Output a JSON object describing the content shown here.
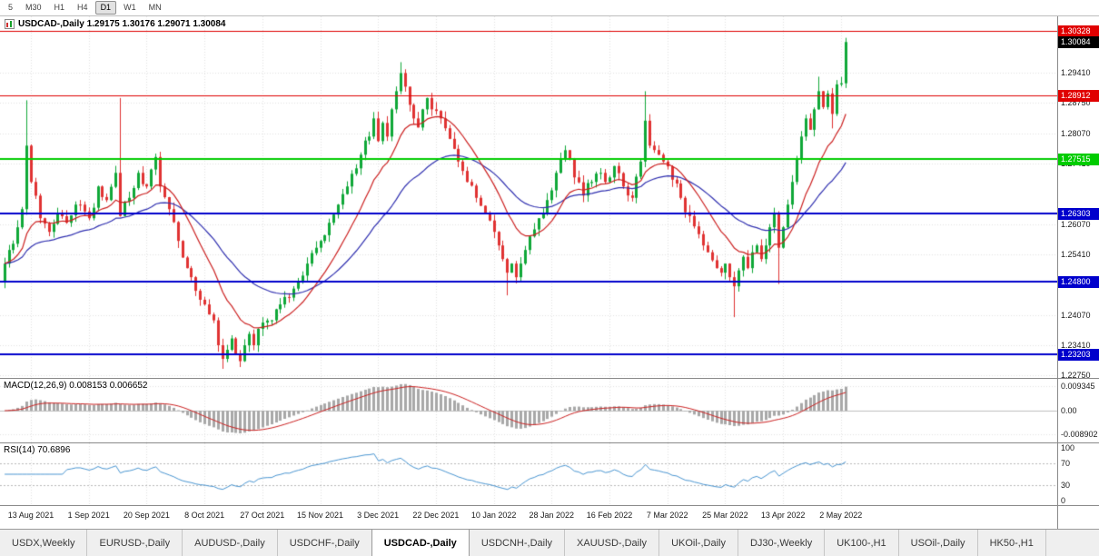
{
  "toolbar": {
    "timeframes": [
      "5",
      "M30",
      "H1",
      "H4",
      "D1",
      "W1",
      "MN"
    ],
    "active_timeframe": "D1"
  },
  "chart": {
    "symbol": "USDCAD-",
    "period": "Daily",
    "title_text": "USDCAD-,Daily 1.29175 1.30176 1.29071 1.30084",
    "price_axis_labels": [
      "1.29410",
      "1.28750",
      "1.28070",
      "1.27410",
      "1.26070",
      "1.25410",
      "1.24070",
      "1.23410",
      "1.22750"
    ],
    "current_price_label": "1.30084",
    "levels": [
      {
        "value": 1.30328,
        "label": "1.30328",
        "color": "#e00000",
        "width": 1
      },
      {
        "value": 1.28912,
        "label": "1.28912",
        "color": "#e00000",
        "width": 1
      },
      {
        "value": 1.27515,
        "label": "1.27515",
        "color": "#00cc00",
        "width": 2
      },
      {
        "value": 1.26303,
        "label": "1.26303",
        "color": "#0000cc",
        "width": 2
      },
      {
        "value": 1.248,
        "label": "1.24800",
        "color": "#0000cc",
        "width": 2
      },
      {
        "value": 1.23203,
        "label": "1.23203",
        "color": "#0000cc",
        "width": 2
      }
    ],
    "colors": {
      "bull": "#0fa838",
      "bear": "#e03232",
      "ma_fast": "#cc2020",
      "ma_slow": "#3030b0",
      "grid": "#e2e2e2",
      "current_price_bg": "#000000"
    },
    "date_labels": [
      "13 Aug 2021",
      "1 Sep 2021",
      "20 Sep 2021",
      "8 Oct 2021",
      "27 Oct 2021",
      "15 Nov 2021",
      "3 Dec 2021",
      "22 Dec 2021",
      "10 Jan 2022",
      "28 Jan 2022",
      "16 Feb 2022",
      "7 Mar 2022",
      "25 Mar 2022",
      "13 Apr 2022",
      "2 May 2022"
    ]
  },
  "macd": {
    "label": "MACD(12,26,9) 0.008153 0.006652",
    "value": 0.008153,
    "signal": 0.006652,
    "axis_labels": [
      {
        "text": "0.009345",
        "value": 0.009345
      },
      {
        "text": "0.00",
        "value": 0
      },
      {
        "text": "-0.008902",
        "value": -0.008902
      }
    ],
    "colors": {
      "histogram": "#a8a8a8",
      "signal": "#cc2020"
    }
  },
  "rsi": {
    "label": "RSI(14) 70.6896",
    "value": 70.6896,
    "axis_labels": [
      {
        "text": "100",
        "value": 100
      },
      {
        "text": "70",
        "value": 70
      },
      {
        "text": "30",
        "value": 30
      },
      {
        "text": "0",
        "value": 0
      }
    ],
    "levels": [
      70,
      30
    ],
    "color": "#4a96d2"
  },
  "tabs": [
    {
      "label": "USDX,Weekly",
      "active": false
    },
    {
      "label": "EURUSD-,Daily",
      "active": false
    },
    {
      "label": "AUDUSD-,Daily",
      "active": false
    },
    {
      "label": "USDCHF-,Daily",
      "active": false
    },
    {
      "label": "USDCAD-,Daily",
      "active": true
    },
    {
      "label": "USDCNH-,Daily",
      "active": false
    },
    {
      "label": "XAUUSD-,Daily",
      "active": false
    },
    {
      "label": "UKOil-,Daily",
      "active": false
    },
    {
      "label": "DJ30-,Weekly",
      "active": false
    },
    {
      "label": "UK100-,H1",
      "active": false
    },
    {
      "label": "USOil-,Daily",
      "active": false
    },
    {
      "label": "HK50-,H1",
      "active": false
    }
  ],
  "chart_data": {
    "type": "candlestick",
    "symbol": "USDCAD",
    "timeframe": "Daily",
    "title": "USDCAD-,Daily",
    "last_candle_ohlc": [
      1.29175,
      1.30176,
      1.29071,
      1.30084
    ],
    "ylim": [
      1.2268,
      1.3065
    ],
    "candle_count": 190,
    "date_tick_indices": [
      6,
      19,
      32,
      45,
      58,
      71,
      84,
      97,
      110,
      123,
      136,
      149,
      162,
      175,
      188
    ],
    "support_resistance": [
      1.30328,
      1.28912,
      1.27515,
      1.26303,
      1.248,
      1.23203
    ],
    "close_anchors": [
      [
        0,
        1.252
      ],
      [
        1,
        1.255
      ],
      [
        3,
        1.26
      ],
      [
        4,
        1.264
      ],
      [
        5,
        1.278
      ],
      [
        6,
        1.27
      ],
      [
        8,
        1.262
      ],
      [
        10,
        1.259
      ],
      [
        12,
        1.263
      ],
      [
        14,
        1.261
      ],
      [
        16,
        1.265
      ],
      [
        18,
        1.2635
      ],
      [
        19,
        1.262
      ],
      [
        21,
        1.269
      ],
      [
        23,
        1.266
      ],
      [
        25,
        1.272
      ],
      [
        26,
        1.2625
      ],
      [
        28,
        1.2665
      ],
      [
        30,
        1.272
      ],
      [
        32,
        1.269
      ],
      [
        34,
        1.2755
      ],
      [
        35,
        1.269
      ],
      [
        37,
        1.264
      ],
      [
        39,
        1.257
      ],
      [
        41,
        1.251
      ],
      [
        43,
        1.246
      ],
      [
        45,
        1.243
      ],
      [
        47,
        1.2395
      ],
      [
        48,
        1.234
      ],
      [
        49,
        1.231
      ],
      [
        50,
        1.233
      ],
      [
        51,
        1.2355
      ],
      [
        52,
        1.232
      ],
      [
        53,
        1.2305
      ],
      [
        54,
        1.234
      ],
      [
        55,
        1.2365
      ],
      [
        56,
        1.234
      ],
      [
        58,
        1.239
      ],
      [
        60,
        1.2395
      ],
      [
        62,
        1.243
      ],
      [
        64,
        1.2445
      ],
      [
        66,
        1.248
      ],
      [
        68,
        1.252
      ],
      [
        70,
        1.2555
      ],
      [
        71,
        1.257
      ],
      [
        73,
        1.261
      ],
      [
        75,
        1.265
      ],
      [
        77,
        1.269
      ],
      [
        79,
        1.273
      ],
      [
        80,
        1.276
      ],
      [
        82,
        1.28
      ],
      [
        83,
        1.284
      ],
      [
        84,
        1.279
      ],
      [
        85,
        1.283
      ],
      [
        86,
        1.28
      ],
      [
        87,
        1.286
      ],
      [
        88,
        1.29
      ],
      [
        89,
        1.294
      ],
      [
        90,
        1.291
      ],
      [
        91,
        1.287
      ],
      [
        92,
        1.284
      ],
      [
        93,
        1.282
      ],
      [
        94,
        1.286
      ],
      [
        95,
        1.2885
      ],
      [
        96,
        1.286
      ],
      [
        98,
        1.284
      ],
      [
        100,
        1.2795
      ],
      [
        102,
        1.2745
      ],
      [
        104,
        1.27
      ],
      [
        106,
        1.2665
      ],
      [
        108,
        1.263
      ],
      [
        109,
        1.2615
      ],
      [
        110,
        1.259
      ],
      [
        111,
        1.256
      ],
      [
        112,
        1.253
      ],
      [
        113,
        1.25
      ],
      [
        114,
        1.252
      ],
      [
        115,
        1.249
      ],
      [
        116,
        1.252
      ],
      [
        117,
        1.255
      ],
      [
        118,
        1.258
      ],
      [
        120,
        1.262
      ],
      [
        122,
        1.266
      ],
      [
        124,
        1.272
      ],
      [
        126,
        1.277
      ],
      [
        128,
        1.271
      ],
      [
        130,
        1.267
      ],
      [
        132,
        1.27
      ],
      [
        134,
        1.272
      ],
      [
        135,
        1.27
      ],
      [
        137,
        1.2735
      ],
      [
        139,
        1.269
      ],
      [
        141,
        1.2665
      ],
      [
        143,
        1.2745
      ],
      [
        144,
        1.2835
      ],
      [
        145,
        1.278
      ],
      [
        147,
        1.276
      ],
      [
        148,
        1.2745
      ],
      [
        150,
        1.2705
      ],
      [
        152,
        1.2665
      ],
      [
        154,
        1.2625
      ],
      [
        156,
        1.2585
      ],
      [
        158,
        1.2545
      ],
      [
        160,
        1.251
      ],
      [
        161,
        1.25
      ],
      [
        162,
        1.252
      ],
      [
        163,
        1.249
      ],
      [
        164,
        1.247
      ],
      [
        165,
        1.2505
      ],
      [
        166,
        1.2535
      ],
      [
        167,
        1.251
      ],
      [
        168,
        1.2545
      ],
      [
        169,
        1.256
      ],
      [
        170,
        1.253
      ],
      [
        171,
        1.256
      ],
      [
        172,
        1.26
      ],
      [
        173,
        1.263
      ],
      [
        174,
        1.2555
      ],
      [
        175,
        1.26
      ],
      [
        176,
        1.265
      ],
      [
        177,
        1.27
      ],
      [
        178,
        1.275
      ],
      [
        179,
        1.28
      ],
      [
        180,
        1.284
      ],
      [
        181,
        1.2815
      ],
      [
        182,
        1.286
      ],
      [
        183,
        1.29
      ],
      [
        184,
        1.2865
      ],
      [
        185,
        1.2895
      ],
      [
        186,
        1.285
      ],
      [
        187,
        1.2915
      ],
      [
        188,
        1.29175
      ],
      [
        189,
        1.30084
      ]
    ],
    "wick_events": [
      {
        "i": 5,
        "high": 1.288
      },
      {
        "i": 26,
        "high": 1.2885
      },
      {
        "i": 49,
        "low": 1.2288
      },
      {
        "i": 53,
        "low": 1.2292
      },
      {
        "i": 89,
        "high": 1.2964
      },
      {
        "i": 113,
        "low": 1.245
      },
      {
        "i": 144,
        "high": 1.29
      },
      {
        "i": 164,
        "low": 1.2402
      },
      {
        "i": 174,
        "low": 1.2475
      },
      {
        "i": 183,
        "high": 1.2932
      },
      {
        "i": 186,
        "low": 1.2818
      }
    ],
    "indicators": [
      {
        "name": "MA fast",
        "type": "ema",
        "period": 13,
        "color": "#cc2020"
      },
      {
        "name": "MA slow",
        "type": "ema",
        "period": 34,
        "color": "#3030b0"
      },
      {
        "name": "MACD",
        "params": "12,26,9",
        "last": 0.008153,
        "signal_last": 0.006652
      },
      {
        "name": "RSI",
        "params": "14",
        "last": 70.6896
      }
    ]
  }
}
